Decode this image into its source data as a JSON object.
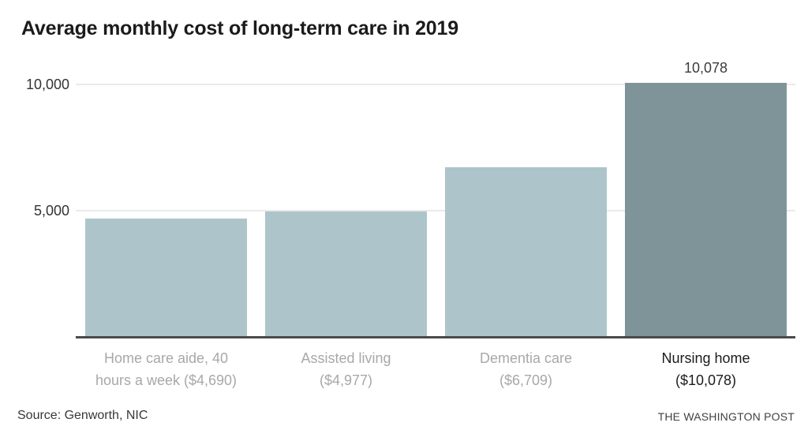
{
  "page": {
    "footer": {
      "source": "Source: Genworth, NIC",
      "publisher": "THE WASHINGTON POST"
    }
  },
  "chart_data": {
    "type": "bar",
    "title": "Average monthly cost of long-term care in 2019",
    "bars": [
      {
        "category": "Home care aide",
        "label_lines": [
          "Home care aide, 40",
          "hours a week ($4,690)"
        ],
        "value": 4690,
        "highlighted": false,
        "value_label": null
      },
      {
        "category": "Assisted living",
        "label_lines": [
          "Assisted living",
          "($4,977)"
        ],
        "value": 4977,
        "highlighted": false,
        "value_label": null
      },
      {
        "category": "Dementia care",
        "label_lines": [
          "Dementia care",
          "($6,709)"
        ],
        "value": 6709,
        "highlighted": false,
        "value_label": null
      },
      {
        "category": "Nursing home",
        "label_lines": [
          "Nursing home",
          "($10,078)"
        ],
        "value": 10078,
        "highlighted": true,
        "value_label": "10,078"
      }
    ],
    "yticks": [
      {
        "value": 5000,
        "label": "5,000"
      },
      {
        "value": 10000,
        "label": "10,000"
      }
    ],
    "ylim": [
      0,
      10625
    ],
    "grid": true,
    "legend": false,
    "colors": {
      "bar": "#adc5ca",
      "bar_highlighted": "#7e9499",
      "gridline": "#eaeaea",
      "axis": "#4a4a4a",
      "category_label_muted": "#a8a8a8",
      "category_label_highlighted": "#1c1c1c",
      "value_label": "#3b3b3b",
      "title": "#1b1b1b"
    }
  }
}
